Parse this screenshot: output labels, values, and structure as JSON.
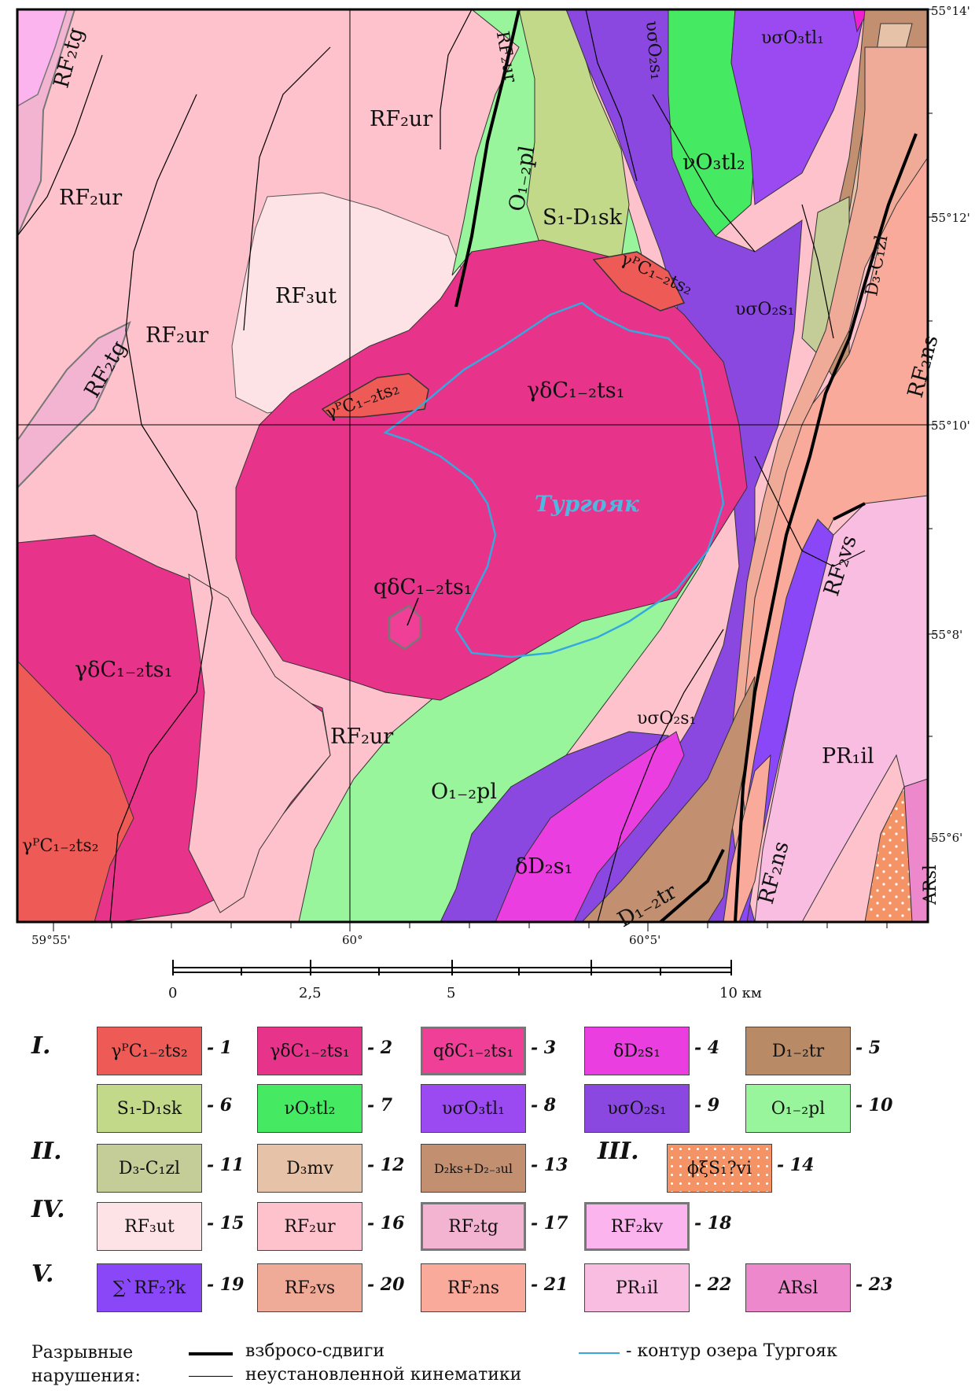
{
  "map": {
    "coords_right": [
      "55°14'",
      "55°12'",
      "55°10'",
      "55°8'",
      "55°6'"
    ],
    "coords_bottom": [
      "59°55'",
      "60°",
      "60°5'"
    ],
    "lake_label": "Тургояк",
    "labels": {
      "rf2tg_a": "RF₂tg",
      "rf2ur_top_left": "RF₂ur",
      "rf2ur_top": "RF₂ur",
      "rf2ur_top_right": "RF₂ur",
      "rf3ut": "RF₃ut",
      "rf2tg_b": "RF₂tg",
      "rf2ur_mid": "RF₂ur",
      "rf2ur_lower": "RF₂ur",
      "o12pl_a": "O₁₋₂pl",
      "s1d1sk": "S₁-D₁sk",
      "uso2s1_top": "υσO₂s₁",
      "vo3tl2": "νO₃tl₂",
      "uso3tl1": "υσO₃tl₁",
      "d3c1zl": "D₃-C₁zl",
      "uso2s1_mid": "υσO₂s₁",
      "rf2ns_right": "RF₂ns",
      "grp_c12ts2_right": "γᴾC₁₋₂ts₂",
      "grp_c12ts2_mid": "γᴾC₁₋₂ts₂",
      "gd_c12ts1_mid": "γδC₁₋₂ts₁",
      "rf2vs": "RF₂vs",
      "qd_c12ts1": "qδC₁₋₂ts₁",
      "gd_c12ts1_left": "γδC₁₋₂ts₁",
      "uso2s1_low": "υσO₂s₁",
      "pr1il": "PR₁il",
      "o12pl_b": "O₁₋₂pl",
      "dd2s1": "δD₂s₁",
      "d12tr": "D₁₋₂tr",
      "rf2ns_low": "RF₂ns",
      "arsl": "ARsl",
      "grp_c12ts2_left": "γᴾC₁₋₂ts₂"
    }
  },
  "scale": {
    "ticks": [
      "0",
      "2,5",
      "5",
      "10 км"
    ]
  },
  "legend": {
    "groups": [
      "I.",
      "II.",
      "III.",
      "IV.",
      "V."
    ],
    "items": [
      {
        "label": "γᴾC₁₋₂ts₂",
        "num": "- 1",
        "color": "#ee5a55"
      },
      {
        "label": "γδC₁₋₂ts₁",
        "num": "- 2",
        "color": "#e8338a"
      },
      {
        "label": "qδC₁₋₂ts₁",
        "num": "- 3",
        "color": "#ef3f96"
      },
      {
        "label": "δD₂s₁",
        "num": "- 4",
        "color": "#ea3ee0"
      },
      {
        "label": "D₁₋₂tr",
        "num": "- 5",
        "color": "#b98a66"
      },
      {
        "label": "S₁-D₁sk",
        "num": "- 6",
        "color": "#c2d98a"
      },
      {
        "label": "νO₃tl₂",
        "num": "- 7",
        "color": "#46e962"
      },
      {
        "label": "υσO₃tl₁",
        "num": "- 8",
        "color": "#9a4af0"
      },
      {
        "label": "υσO₂s₁",
        "num": "- 9",
        "color": "#8a48e0"
      },
      {
        "label": "O₁₋₂pl",
        "num": "- 10",
        "color": "#98f59c"
      },
      {
        "label": "D₃-C₁zl",
        "num": "- 11",
        "color": "#c4cc98"
      },
      {
        "label": "D₃mv",
        "num": "- 12",
        "color": "#e6c3a8"
      },
      {
        "label": "D₂ks+D₂₋₃ul",
        "num": "- 13",
        "color": "#c29070"
      },
      {
        "label": "ϕξS₁?vi",
        "num": "- 14",
        "color": "#f49466"
      },
      {
        "label": "RF₃ut",
        "num": "- 15",
        "color": "#fde2e6"
      },
      {
        "label": "RF₂ur",
        "num": "- 16",
        "color": "#fec2cc"
      },
      {
        "label": "RF₂tg",
        "num": "- 17",
        "color": "#f3b4d1"
      },
      {
        "label": "RF₂kv",
        "num": "- 18",
        "color": "#fbb4ee"
      },
      {
        "label": "∑`RF₂?k",
        "num": "- 19",
        "color": "#8a47f7"
      },
      {
        "label": "RF₂vs",
        "num": "- 20",
        "color": "#f0ab98"
      },
      {
        "label": "RF₂ns",
        "num": "- 21",
        "color": "#faaa9a"
      },
      {
        "label": "PR₁il",
        "num": "- 22",
        "color": "#f8bde0"
      },
      {
        "label": "ARsl",
        "num": "- 23",
        "color": "#ee88cc"
      }
    ]
  },
  "faults": {
    "title_line1": "Разрывные",
    "title_line2": "нарушения:",
    "thrust_label": "взбросо-сдвиги",
    "unknown_label": "неустановленной кинематики",
    "lake_contour_label": "- контур озера Тургояк"
  },
  "colors": {
    "lake_contour": "#35a9dd",
    "fault_line": "#000000"
  }
}
